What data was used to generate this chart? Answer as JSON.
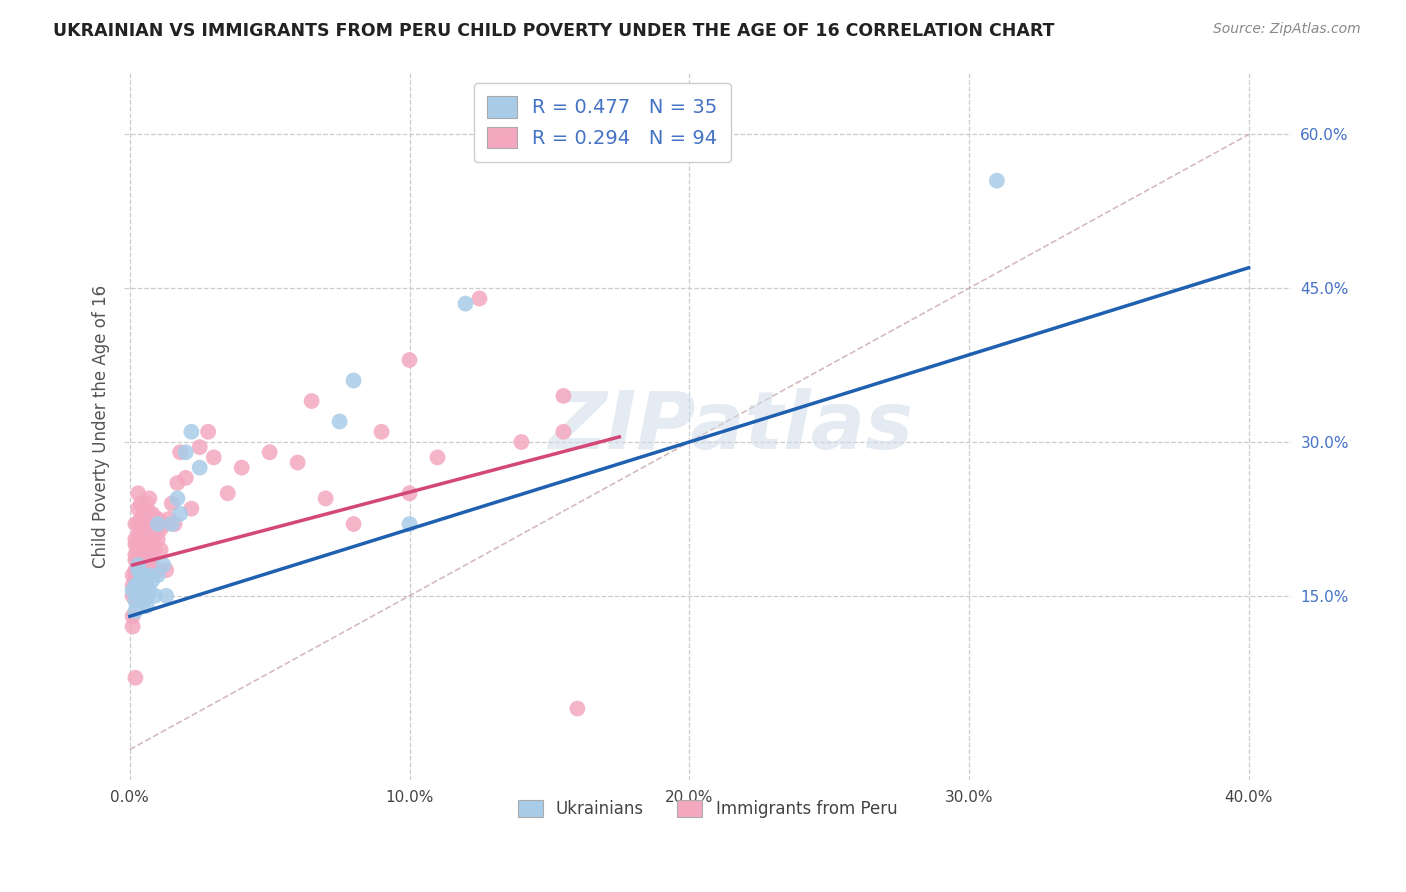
{
  "title": "UKRAINIAN VS IMMIGRANTS FROM PERU CHILD POVERTY UNDER THE AGE OF 16 CORRELATION CHART",
  "source": "Source: ZipAtlas.com",
  "ylabel": "Child Poverty Under the Age of 16",
  "xlim": [
    -0.002,
    0.415
  ],
  "ylim": [
    -0.03,
    0.66
  ],
  "xticks": [
    0.0,
    0.1,
    0.2,
    0.3,
    0.4
  ],
  "xtick_labels": [
    "0.0%",
    "10.0%",
    "20.0%",
    "30.0%",
    "40.0%"
  ],
  "ytick_vals": [
    0.15,
    0.3,
    0.45,
    0.6
  ],
  "ytick_labels": [
    "15.0%",
    "30.0%",
    "45.0%",
    "60.0%"
  ],
  "watermark": "ZIPatlas",
  "legend_line1": "R = 0.477   N = 35",
  "legend_line2": "R = 0.294   N = 94",
  "blue_scatter_color": "#a8cce8",
  "pink_scatter_color": "#f4a8c0",
  "blue_line_color": "#2060b0",
  "pink_line_color": "#d44878",
  "grid_color": "#cccccc",
  "ukrainians_x": [
    0.001,
    0.002,
    0.002,
    0.002,
    0.003,
    0.003,
    0.003,
    0.003,
    0.004,
    0.004,
    0.004,
    0.005,
    0.005,
    0.005,
    0.006,
    0.006,
    0.007,
    0.007,
    0.008,
    0.009,
    0.01,
    0.01,
    0.012,
    0.013,
    0.015,
    0.017,
    0.018,
    0.02,
    0.022,
    0.025,
    0.075,
    0.08,
    0.1,
    0.12,
    0.31
  ],
  "ukrainians_y": [
    0.155,
    0.16,
    0.145,
    0.135,
    0.175,
    0.18,
    0.15,
    0.16,
    0.17,
    0.155,
    0.165,
    0.145,
    0.155,
    0.17,
    0.14,
    0.15,
    0.17,
    0.155,
    0.165,
    0.15,
    0.22,
    0.17,
    0.18,
    0.15,
    0.22,
    0.245,
    0.23,
    0.29,
    0.31,
    0.275,
    0.32,
    0.36,
    0.22,
    0.435,
    0.555
  ],
  "peru_x": [
    0.001,
    0.001,
    0.001,
    0.001,
    0.001,
    0.002,
    0.002,
    0.002,
    0.002,
    0.002,
    0.002,
    0.002,
    0.002,
    0.002,
    0.002,
    0.003,
    0.003,
    0.003,
    0.003,
    0.003,
    0.003,
    0.003,
    0.003,
    0.003,
    0.003,
    0.004,
    0.004,
    0.004,
    0.004,
    0.004,
    0.004,
    0.004,
    0.004,
    0.005,
    0.005,
    0.005,
    0.005,
    0.005,
    0.005,
    0.005,
    0.006,
    0.006,
    0.006,
    0.006,
    0.006,
    0.006,
    0.006,
    0.007,
    0.007,
    0.007,
    0.007,
    0.007,
    0.007,
    0.008,
    0.008,
    0.008,
    0.008,
    0.009,
    0.009,
    0.009,
    0.01,
    0.01,
    0.01,
    0.011,
    0.011,
    0.012,
    0.013,
    0.014,
    0.015,
    0.016,
    0.017,
    0.018,
    0.02,
    0.022,
    0.025,
    0.028,
    0.03,
    0.035,
    0.04,
    0.05,
    0.06,
    0.065,
    0.07,
    0.08,
    0.09,
    0.1,
    0.11,
    0.125,
    0.14,
    0.155,
    0.155,
    0.16,
    0.002,
    0.1
  ],
  "peru_y": [
    0.12,
    0.13,
    0.15,
    0.16,
    0.17,
    0.15,
    0.155,
    0.165,
    0.17,
    0.175,
    0.185,
    0.19,
    0.2,
    0.205,
    0.22,
    0.155,
    0.165,
    0.175,
    0.185,
    0.195,
    0.2,
    0.21,
    0.22,
    0.235,
    0.25,
    0.165,
    0.175,
    0.185,
    0.195,
    0.205,
    0.215,
    0.225,
    0.24,
    0.155,
    0.165,
    0.175,
    0.19,
    0.2,
    0.215,
    0.23,
    0.165,
    0.175,
    0.185,
    0.2,
    0.215,
    0.225,
    0.24,
    0.18,
    0.19,
    0.2,
    0.215,
    0.23,
    0.245,
    0.185,
    0.2,
    0.215,
    0.23,
    0.195,
    0.21,
    0.225,
    0.175,
    0.205,
    0.225,
    0.195,
    0.215,
    0.22,
    0.175,
    0.225,
    0.24,
    0.22,
    0.26,
    0.29,
    0.265,
    0.235,
    0.295,
    0.31,
    0.285,
    0.25,
    0.275,
    0.29,
    0.28,
    0.34,
    0.245,
    0.22,
    0.31,
    0.38,
    0.285,
    0.44,
    0.3,
    0.31,
    0.345,
    0.04,
    0.07,
    0.25
  ],
  "blue_trend_x": [
    0.0,
    0.4
  ],
  "blue_trend_y": [
    0.13,
    0.47
  ],
  "pink_trend_x": [
    0.001,
    0.175
  ],
  "pink_trend_y": [
    0.18,
    0.305
  ],
  "ref_line_x": [
    0.0,
    0.4
  ],
  "ref_line_y": [
    0.0,
    0.6
  ]
}
